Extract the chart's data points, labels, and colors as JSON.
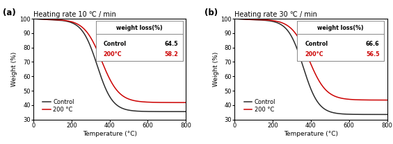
{
  "panels": [
    {
      "label": "(a)",
      "title": "Heating rate 10 ℃ / min",
      "xlabel": "Temperature (°C)",
      "ylabel": "Weight (%)",
      "xlim": [
        0,
        800
      ],
      "ylim": [
        30,
        100
      ],
      "yticks": [
        30,
        40,
        50,
        60,
        70,
        80,
        90,
        100
      ],
      "xticks": [
        0,
        200,
        400,
        600,
        800
      ],
      "control_end": 35.5,
      "treated_end": 41.8,
      "control_inflection": 335,
      "treated_inflection": 358,
      "control_steepness": 0.025,
      "treated_steepness": 0.022,
      "weight_loss_control": "64.5",
      "weight_loss_treated": "58.2"
    },
    {
      "label": "(b)",
      "title": "Heating rate 30 ℃ / min",
      "xlabel": "Temperature (°C)",
      "ylabel": "Weight (%)",
      "xlim": [
        0,
        800
      ],
      "ylim": [
        30,
        100
      ],
      "yticks": [
        30,
        40,
        50,
        60,
        70,
        80,
        90,
        100
      ],
      "xticks": [
        0,
        200,
        400,
        600,
        800
      ],
      "control_end": 33.5,
      "treated_end": 43.5,
      "control_inflection": 360,
      "treated_inflection": 390,
      "control_steepness": 0.025,
      "treated_steepness": 0.022,
      "weight_loss_control": "66.6",
      "weight_loss_treated": "56.5"
    }
  ],
  "control_color": "#2a2a2a",
  "treated_color": "#cc0000",
  "line_width": 1.1
}
